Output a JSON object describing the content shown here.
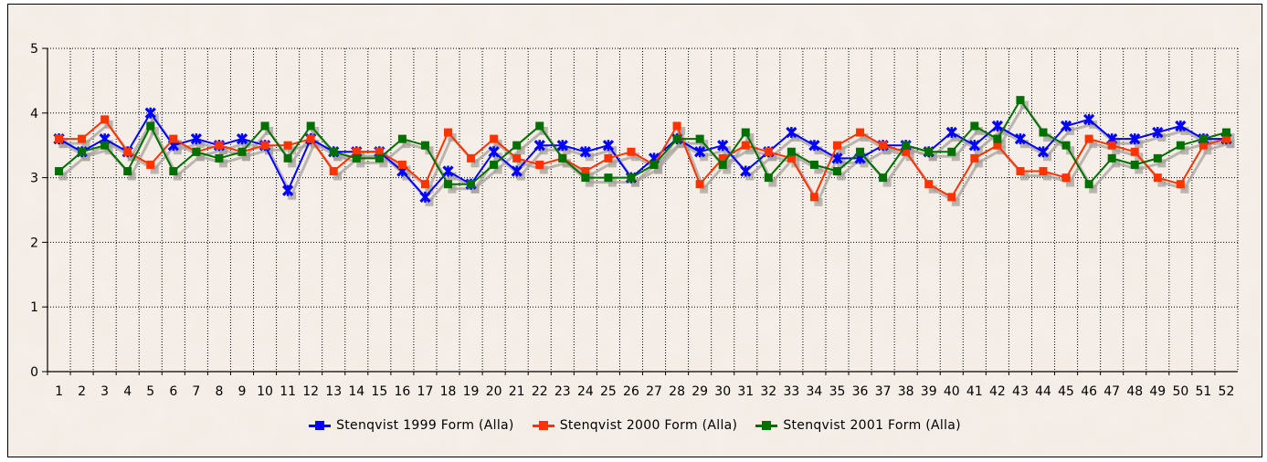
{
  "chart_data": {
    "type": "line",
    "categories": [
      "1",
      "2",
      "3",
      "4",
      "5",
      "6",
      "7",
      "8",
      "9",
      "10",
      "11",
      "12",
      "13",
      "14",
      "15",
      "16",
      "17",
      "18",
      "19",
      "20",
      "21",
      "22",
      "23",
      "24",
      "25",
      "26",
      "27",
      "28",
      "29",
      "30",
      "31",
      "32",
      "33",
      "34",
      "35",
      "36",
      "37",
      "38",
      "39",
      "40",
      "41",
      "42",
      "43",
      "44",
      "45",
      "46",
      "47",
      "48",
      "49",
      "50",
      "51",
      "52"
    ],
    "ylim": [
      0,
      5
    ],
    "yticks": [
      "0",
      "1",
      "2",
      "3",
      "4",
      "5"
    ],
    "grid": true,
    "legend": "bottom",
    "series": [
      {
        "name": "Stenqvist 1999 Form (Alla)",
        "color": "#0000ff",
        "values": [
          3.6,
          3.4,
          3.6,
          3.4,
          4.0,
          3.5,
          3.6,
          3.5,
          3.6,
          3.5,
          2.8,
          3.6,
          3.4,
          3.4,
          3.4,
          3.1,
          2.7,
          3.1,
          2.9,
          3.4,
          3.1,
          3.5,
          3.5,
          3.4,
          3.5,
          3.0,
          3.3,
          3.6,
          3.4,
          3.5,
          3.1,
          3.4,
          3.7,
          3.5,
          3.3,
          3.3,
          3.5,
          3.5,
          3.4,
          3.7,
          3.5,
          3.8,
          3.6,
          3.4,
          3.8,
          3.9,
          3.6,
          3.6,
          3.7,
          3.8,
          3.6,
          3.6
        ]
      },
      {
        "name": "Stenqvist 2000 Form (Alla)",
        "color": "#ff3300",
        "values": [
          3.6,
          3.6,
          3.9,
          3.4,
          3.2,
          3.6,
          3.4,
          3.5,
          3.4,
          3.5,
          3.5,
          3.6,
          3.1,
          3.4,
          3.4,
          3.2,
          2.9,
          3.7,
          3.3,
          3.6,
          3.3,
          3.2,
          3.3,
          3.1,
          3.3,
          3.4,
          3.2,
          3.8,
          2.9,
          3.3,
          3.5,
          3.4,
          3.3,
          2.7,
          3.5,
          3.7,
          3.5,
          3.4,
          2.9,
          2.7,
          3.3,
          3.5,
          3.1,
          3.1,
          3.0,
          3.6,
          3.5,
          3.4,
          3.0,
          2.9,
          3.5,
          3.6
        ]
      },
      {
        "name": "Stenqvist 2001 Form (Alla)",
        "color": "#007000",
        "values": [
          3.1,
          3.4,
          3.5,
          3.1,
          3.8,
          3.1,
          3.4,
          3.3,
          3.4,
          3.8,
          3.3,
          3.8,
          3.4,
          3.3,
          3.3,
          3.6,
          3.5,
          2.9,
          2.9,
          3.2,
          3.5,
          3.8,
          3.3,
          3.0,
          3.0,
          3.0,
          3.2,
          3.6,
          3.6,
          3.2,
          3.7,
          3.0,
          3.4,
          3.2,
          3.1,
          3.4,
          3.0,
          3.5,
          3.4,
          3.4,
          3.8,
          3.6,
          4.2,
          3.7,
          3.5,
          2.9,
          3.3,
          3.2,
          3.3,
          3.5,
          3.6,
          3.7
        ]
      }
    ]
  }
}
